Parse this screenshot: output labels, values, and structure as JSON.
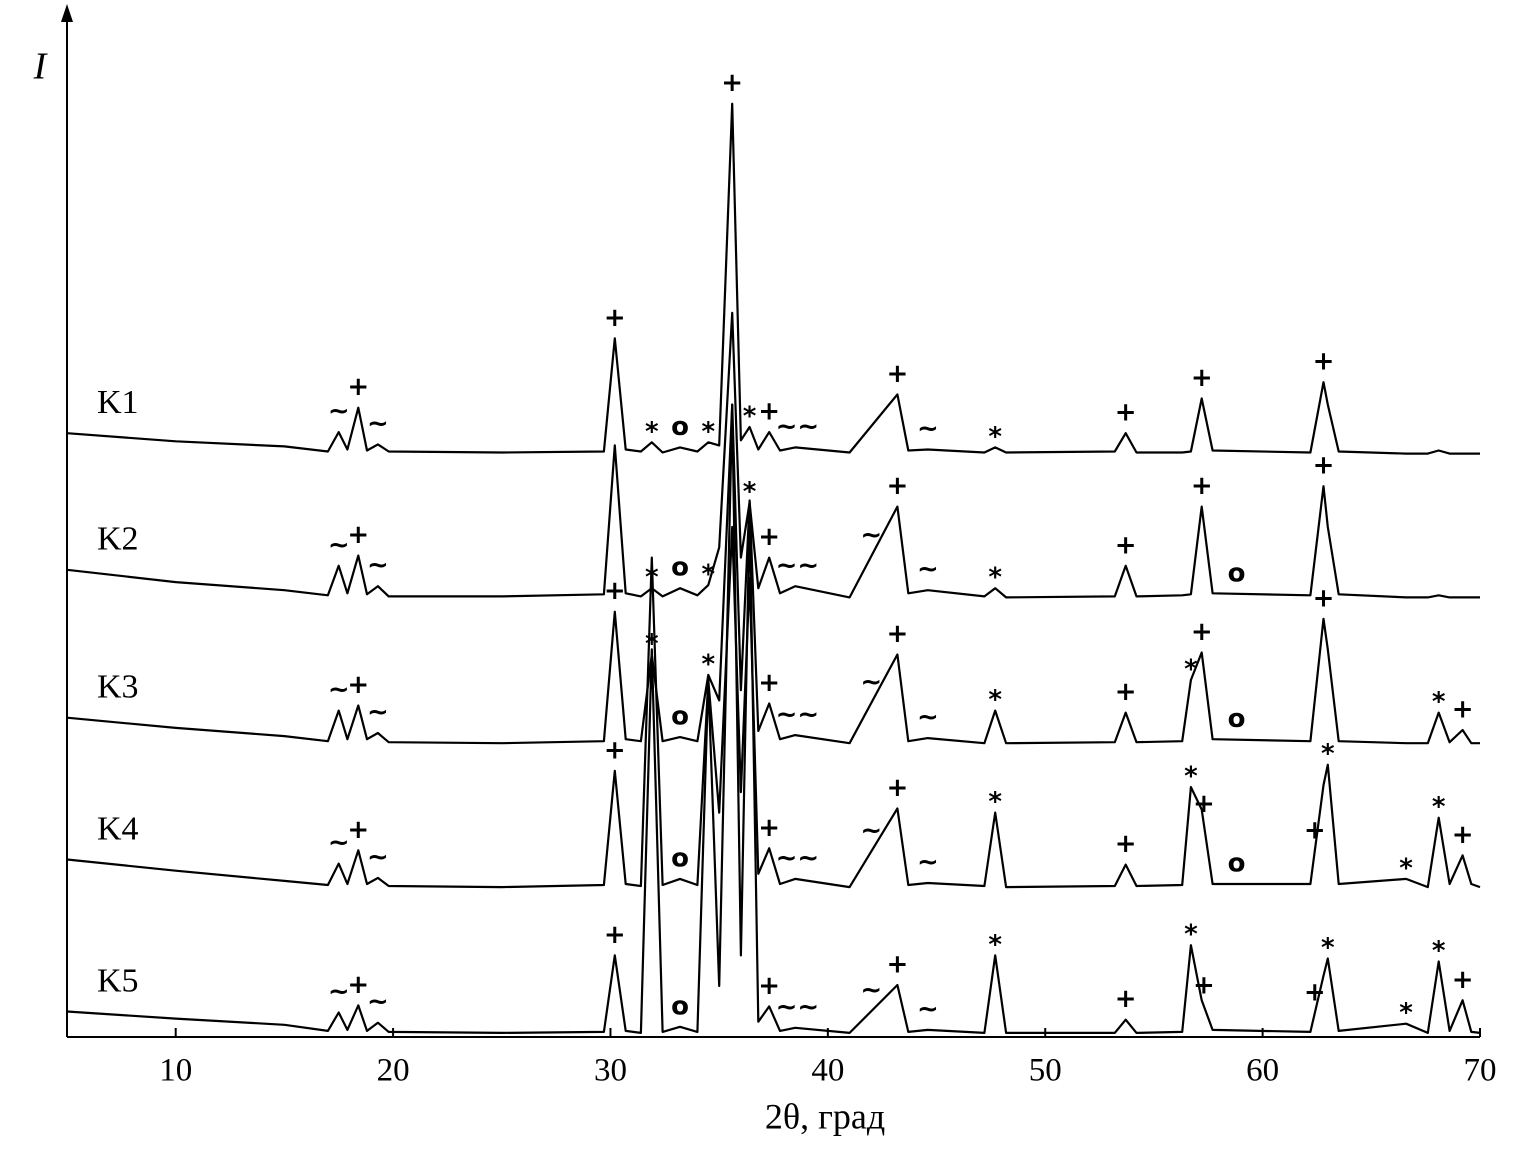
{
  "chart_data": {
    "type": "line",
    "x_label": "2θ, град",
    "y_label": "I",
    "xlim": [
      5,
      70
    ],
    "xticks": [
      10,
      20,
      30,
      40,
      50,
      60,
      70
    ],
    "ylim": [
      0,
      100
    ],
    "x": [
      5,
      10,
      15,
      17.0,
      17.5,
      17.9,
      18.4,
      18.8,
      19.3,
      19.8,
      25,
      29.7,
      30.2,
      30.7,
      31.4,
      31.9,
      32.4,
      33.2,
      34.0,
      34.5,
      35.0,
      35.6,
      36.0,
      36.4,
      36.8,
      37.3,
      37.8,
      38.5,
      41,
      43.2,
      43.7,
      44.6,
      47.2,
      47.7,
      48.2,
      53.2,
      53.7,
      54.2,
      56.3,
      56.7,
      57.2,
      57.7,
      62.2,
      62.8,
      63.0,
      63.5,
      66.6,
      67.6,
      68.1,
      68.6,
      69.2,
      69.6,
      70
    ],
    "series": [
      {
        "name": "K1",
        "color": "#000000",
        "values": [
          59.2,
          58.4,
          57.9,
          57.4,
          59.3,
          57.6,
          61.7,
          57.5,
          58.1,
          57.4,
          57.3,
          57.4,
          68.5,
          57.6,
          57.4,
          58.3,
          57.3,
          57.8,
          57.4,
          58.3,
          58.0,
          91.5,
          58.5,
          59.8,
          57.6,
          59.3,
          57.5,
          57.8,
          57.3,
          63.0,
          57.5,
          57.6,
          57.3,
          57.8,
          57.3,
          57.4,
          59.2,
          57.3,
          57.3,
          57.4,
          62.6,
          57.5,
          57.3,
          64.2,
          62,
          57.4,
          57.2,
          57.2,
          57.5,
          57.2,
          57.2,
          57.2,
          57.2
        ],
        "annotations": [
          {
            "label": "~",
            "x": 17.5
          },
          {
            "label": "+",
            "x": 18.4
          },
          {
            "label": "~",
            "x": 19.3
          },
          {
            "label": "+",
            "x": 30.2
          },
          {
            "label": "*",
            "x": 31.9
          },
          {
            "label": "o",
            "x": 33.2
          },
          {
            "label": "*",
            "x": 34.5
          },
          {
            "label": "+",
            "x": 35.6
          },
          {
            "label": "*",
            "x": 36.4
          },
          {
            "label": "+",
            "x": 37.3
          },
          {
            "label": "~~",
            "x": 38.6
          },
          {
            "label": "+",
            "x": 43.2
          },
          {
            "label": "~",
            "x": 44.6
          },
          {
            "label": "*",
            "x": 47.7
          },
          {
            "label": "+",
            "x": 53.7
          },
          {
            "label": "+",
            "x": 57.2
          },
          {
            "label": "+",
            "x": 62.8
          }
        ]
      },
      {
        "name": "K2",
        "color": "#000000",
        "values": [
          45.8,
          44.6,
          43.8,
          43.3,
          46.2,
          43.5,
          47.2,
          43.4,
          44.2,
          43.2,
          43.2,
          43.4,
          58.0,
          43.5,
          43.2,
          44.0,
          43.2,
          44.0,
          43.3,
          44.3,
          48,
          71,
          47,
          52.4,
          44,
          47.0,
          43.5,
          44.2,
          43.1,
          52,
          43.5,
          43.8,
          43.2,
          44.0,
          43.1,
          43.2,
          46.2,
          43.2,
          43.3,
          43.4,
          52,
          43.5,
          43.3,
          54,
          50,
          43.4,
          43.1,
          43.1,
          43.3,
          43.1,
          43.1,
          43.1,
          43.1
        ],
        "annotations": [
          {
            "label": "~",
            "x": 17.5
          },
          {
            "label": "+",
            "x": 18.4
          },
          {
            "label": "~",
            "x": 19.3
          },
          {
            "label": "*",
            "x": 31.9
          },
          {
            "label": "o",
            "x": 33.2
          },
          {
            "label": "*",
            "x": 34.5
          },
          {
            "label": "*",
            "x": 36.4
          },
          {
            "label": "+",
            "x": 37.3
          },
          {
            "label": "~~",
            "x": 38.6
          },
          {
            "label": "~",
            "x": 42
          },
          {
            "label": "+",
            "x": 43.2
          },
          {
            "label": "~",
            "x": 44.6
          },
          {
            "label": "*",
            "x": 47.7
          },
          {
            "label": "+",
            "x": 53.7
          },
          {
            "label": "+",
            "x": 57.2
          },
          {
            "label": "o",
            "x": 58.8
          },
          {
            "label": "+",
            "x": 62.8
          }
        ]
      },
      {
        "name": "K3",
        "color": "#000000",
        "values": [
          31.3,
          30.3,
          29.5,
          29,
          32,
          29.2,
          32.5,
          29.2,
          29.8,
          28.9,
          28.8,
          29,
          41.7,
          29.2,
          29,
          37.5,
          29,
          29.4,
          29,
          35.5,
          33,
          62,
          34,
          52.6,
          30,
          32.7,
          29.2,
          29.6,
          28.8,
          37.5,
          29,
          29.3,
          28.8,
          32,
          28.8,
          28.9,
          31.8,
          28.9,
          29,
          35,
          37.7,
          29.2,
          29,
          41,
          38,
          29,
          28.8,
          28.8,
          31.8,
          28.9,
          30.1,
          28.8,
          28.8
        ],
        "annotations": [
          {
            "label": "~",
            "x": 17.5
          },
          {
            "label": "+",
            "x": 18.4
          },
          {
            "label": "~",
            "x": 19.3
          },
          {
            "label": "+",
            "x": 30.2
          },
          {
            "label": "*",
            "x": 31.9
          },
          {
            "label": "o",
            "x": 33.2
          },
          {
            "label": "*",
            "x": 34.5
          },
          {
            "label": "+",
            "x": 37.3
          },
          {
            "label": "~~",
            "x": 38.6
          },
          {
            "label": "~",
            "x": 42
          },
          {
            "label": "+",
            "x": 43.2
          },
          {
            "label": "~",
            "x": 44.6
          },
          {
            "label": "*",
            "x": 47.7
          },
          {
            "label": "+",
            "x": 53.7
          },
          {
            "label": "*",
            "x": 56.7
          },
          {
            "label": "+",
            "x": 57.2
          },
          {
            "label": "o",
            "x": 58.8
          },
          {
            "label": "+",
            "x": 62.8
          },
          {
            "label": "*",
            "x": 68.1
          },
          {
            "label": "+",
            "x": 69.2
          }
        ]
      },
      {
        "name": "K4",
        "color": "#000000",
        "values": [
          17.4,
          16.3,
          15.3,
          14.9,
          17,
          15,
          18.3,
          15,
          15.6,
          14.8,
          14.7,
          14.9,
          26.1,
          15,
          14.8,
          47,
          14.9,
          15.5,
          14.9,
          35,
          22,
          50,
          24,
          45,
          16,
          18.5,
          15,
          15.5,
          14.7,
          22.4,
          14.9,
          15.1,
          14.8,
          22,
          14.7,
          14.8,
          16.9,
          14.8,
          14.9,
          24.5,
          22.3,
          15,
          15,
          24.7,
          26.7,
          15,
          15.5,
          14.7,
          21.5,
          15,
          17.8,
          15,
          14.7
        ],
        "annotations": [
          {
            "label": "~",
            "x": 17.5
          },
          {
            "label": "+",
            "x": 18.4
          },
          {
            "label": "~",
            "x": 19.3
          },
          {
            "label": "+",
            "x": 30.2
          },
          {
            "label": "o",
            "x": 33.2
          },
          {
            "label": "+",
            "x": 37.3
          },
          {
            "label": "~~",
            "x": 38.6
          },
          {
            "label": "~",
            "x": 42
          },
          {
            "label": "+",
            "x": 43.2
          },
          {
            "label": "~",
            "x": 44.6
          },
          {
            "label": "*",
            "x": 47.7
          },
          {
            "label": "+",
            "x": 53.7
          },
          {
            "label": "*",
            "x": 56.7
          },
          {
            "label": "+",
            "x": 57.3
          },
          {
            "label": "o",
            "x": 58.8
          },
          {
            "label": "+",
            "x": 62.4
          },
          {
            "label": "*",
            "x": 63.0
          },
          {
            "label": "*",
            "x": 66.6
          },
          {
            "label": "*",
            "x": 68.1
          },
          {
            "label": "+",
            "x": 69.2
          }
        ]
      },
      {
        "name": "K5",
        "color": "#000000",
        "values": [
          2.5,
          1.8,
          1.2,
          0.6,
          2.4,
          0.7,
          3.1,
          0.6,
          1.4,
          0.5,
          0.4,
          0.5,
          8,
          0.6,
          0.4,
          38,
          0.5,
          1,
          0.5,
          35,
          5,
          62,
          8,
          51.6,
          1.5,
          3,
          0.6,
          0.9,
          0.4,
          5.1,
          0.5,
          0.7,
          0.4,
          8,
          0.4,
          0.4,
          1.7,
          0.4,
          0.5,
          9,
          3.6,
          0.7,
          0.5,
          6,
          7.7,
          0.6,
          1.3,
          0.4,
          7.4,
          0.6,
          3.6,
          0.5,
          0.4
        ],
        "annotations": [
          {
            "label": "~",
            "x": 17.5
          },
          {
            "label": "+",
            "x": 18.4
          },
          {
            "label": "~",
            "x": 19.3
          },
          {
            "label": "+",
            "x": 30.2
          },
          {
            "label": "o",
            "x": 33.2
          },
          {
            "label": "+",
            "x": 37.3
          },
          {
            "label": "~~",
            "x": 38.6
          },
          {
            "label": "~",
            "x": 42
          },
          {
            "label": "+",
            "x": 43.2
          },
          {
            "label": "~",
            "x": 44.6
          },
          {
            "label": "*",
            "x": 47.7
          },
          {
            "label": "+",
            "x": 53.7
          },
          {
            "label": "*",
            "x": 56.7
          },
          {
            "label": "+",
            "x": 57.3
          },
          {
            "label": "+",
            "x": 62.4
          },
          {
            "label": "*",
            "x": 63.0
          },
          {
            "label": "*",
            "x": 66.6
          },
          {
            "label": "*",
            "x": 68.1
          },
          {
            "label": "+",
            "x": 69.2
          }
        ]
      }
    ]
  }
}
